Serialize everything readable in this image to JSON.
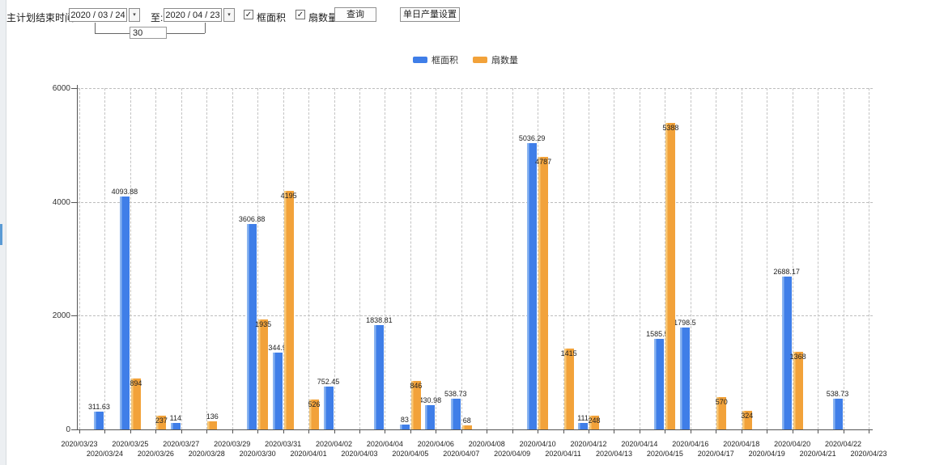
{
  "toolbar": {
    "label": "主计划结束时间:",
    "start_date": {
      "value": "2020 / 03 / 24"
    },
    "to_label": "至:",
    "end_date": {
      "value": "2020 / 04 / 23"
    },
    "span_days": "30",
    "dropdown_icon": "▾",
    "check_icon": "✓",
    "checkbox_frame": {
      "label": "框面积",
      "checked": true
    },
    "checkbox_fan": {
      "label": "扇数量",
      "checked": true
    },
    "query_button": "查询",
    "daily_output_button": "单日产量设置"
  },
  "legend": {
    "items": [
      {
        "label": "框面积",
        "color": "#3f7ee8"
      },
      {
        "label": "扇数量",
        "color": "#f2a23a"
      }
    ]
  },
  "chart_data": {
    "type": "bar",
    "title": "",
    "xlabel": "",
    "ylabel": "",
    "ylim": [
      0,
      6000
    ],
    "yticks": [
      0,
      2000,
      4000,
      6000
    ],
    "grid": "dashed",
    "legend_position": "top-center",
    "categories": [
      "2020/03/23",
      "2020/03/24",
      "2020/03/25",
      "2020/03/26",
      "2020/03/27",
      "2020/03/28",
      "2020/03/29",
      "2020/03/30",
      "2020/03/31",
      "2020/04/01",
      "2020/04/02",
      "2020/04/03",
      "2020/04/04",
      "2020/04/05",
      "2020/04/06",
      "2020/04/07",
      "2020/04/08",
      "2020/04/09",
      "2020/04/10",
      "2020/04/11",
      "2020/04/12",
      "2020/04/13",
      "2020/04/14",
      "2020/04/15",
      "2020/04/16",
      "2020/04/17",
      "2020/04/18",
      "2020/04/19",
      "2020/04/20",
      "2020/04/21",
      "2020/04/22",
      "2020/04/23"
    ],
    "series": [
      {
        "name": "框面积",
        "color": "#3f7ee8",
        "highlight": "#8ab4f0",
        "values": [
          null,
          311.63,
          4093.88,
          null,
          114,
          null,
          null,
          3606.88,
          1344.95,
          null,
          752.45,
          null,
          1838.81,
          83,
          430.98,
          538.73,
          null,
          null,
          5036.29,
          null,
          111,
          null,
          null,
          1585.96,
          1798.5,
          null,
          null,
          null,
          2688.17,
          null,
          538.73,
          null
        ]
      },
      {
        "name": "扇数量",
        "color": "#f2a23a",
        "highlight": "#f8c878",
        "values": [
          null,
          null,
          894,
          237,
          null,
          136,
          null,
          1935,
          4195,
          526,
          null,
          null,
          null,
          846,
          null,
          68,
          null,
          null,
          4787,
          1415,
          248,
          null,
          null,
          5388,
          null,
          570,
          324,
          null,
          1368,
          null,
          null,
          null
        ]
      }
    ]
  }
}
